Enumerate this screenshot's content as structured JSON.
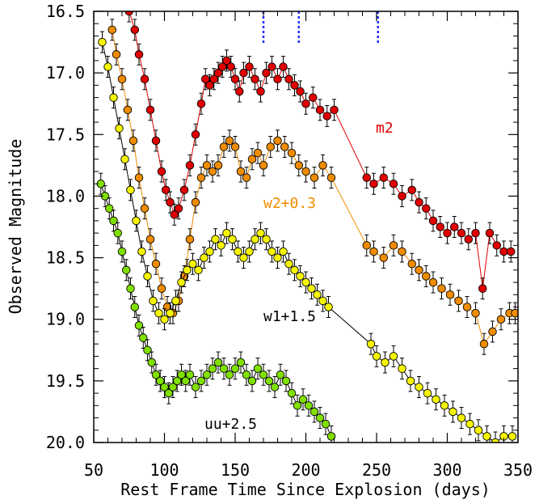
{
  "chart_data": {
    "type": "scatter",
    "xlabel": "Rest Frame Time Since Explosion (days)",
    "ylabel": "Observed Magnitude",
    "xlim": [
      50,
      350
    ],
    "ylim": [
      16.5,
      20.0
    ],
    "y_inverted": true,
    "x_ticks": [
      50,
      100,
      150,
      200,
      250,
      300,
      350
    ],
    "y_ticks": [
      16.5,
      17.0,
      17.5,
      18.0,
      18.5,
      19.0,
      19.5,
      20.0
    ],
    "markers": [
      170,
      195,
      251
    ],
    "series": [
      {
        "name": "m2",
        "color": "#e00000",
        "x": [
          75,
          79,
          82,
          86,
          90,
          94,
          98,
          101,
          104,
          107,
          110,
          114,
          118,
          122,
          126,
          129,
          132,
          135,
          138,
          141,
          144,
          147,
          150,
          153,
          156,
          160,
          164,
          168,
          172,
          176,
          180,
          184,
          188,
          192,
          196,
          200,
          205,
          210,
          215,
          220,
          243,
          248,
          255,
          262,
          268,
          275,
          280,
          285,
          290,
          295,
          300,
          305,
          310,
          315,
          320,
          325,
          330,
          335,
          340,
          345
        ],
        "y": [
          16.5,
          16.65,
          16.85,
          17.05,
          17.3,
          17.55,
          17.8,
          17.95,
          18.05,
          18.15,
          18.1,
          17.95,
          17.75,
          17.5,
          17.25,
          17.05,
          17.1,
          17.05,
          17.0,
          16.95,
          16.9,
          16.95,
          17.05,
          17.15,
          17.0,
          16.95,
          17.05,
          17.15,
          17.0,
          16.95,
          17.05,
          16.95,
          17.05,
          17.1,
          17.15,
          17.25,
          17.2,
          17.3,
          17.35,
          17.3,
          17.85,
          17.9,
          17.85,
          17.9,
          18.0,
          17.95,
          18.05,
          18.1,
          18.2,
          18.25,
          18.3,
          18.25,
          18.3,
          18.35,
          18.3,
          18.75,
          18.3,
          18.4,
          18.45,
          18.45
        ]
      },
      {
        "name": "w2+0.3",
        "color": "#f08c00",
        "x": [
          63,
          66,
          70,
          74,
          78,
          82,
          86,
          90,
          94,
          98,
          102,
          106,
          110,
          114,
          118,
          122,
          126,
          130,
          134,
          138,
          142,
          146,
          150,
          154,
          158,
          162,
          166,
          170,
          175,
          180,
          185,
          190,
          195,
          200,
          206,
          212,
          218,
          243,
          248,
          255,
          262,
          268,
          275,
          280,
          285,
          290,
          296,
          302,
          308,
          314,
          320,
          326,
          332,
          338,
          344,
          348
        ],
        "y": [
          16.65,
          16.85,
          17.05,
          17.3,
          17.55,
          17.85,
          18.1,
          18.35,
          18.55,
          18.75,
          18.9,
          18.95,
          18.85,
          18.65,
          18.35,
          18.05,
          17.85,
          17.75,
          17.8,
          17.75,
          17.6,
          17.55,
          17.6,
          17.8,
          17.85,
          17.7,
          17.65,
          17.75,
          17.6,
          17.55,
          17.6,
          17.65,
          17.75,
          17.8,
          17.85,
          17.75,
          17.85,
          18.4,
          18.45,
          18.5,
          18.4,
          18.45,
          18.55,
          18.6,
          18.65,
          18.7,
          18.75,
          18.8,
          18.85,
          18.9,
          18.95,
          19.2,
          19.1,
          19.0,
          18.95,
          18.95
        ]
      },
      {
        "name": "w1+1.5",
        "color": "#f5f500",
        "x": [
          56,
          60,
          64,
          68,
          72,
          76,
          80,
          84,
          88,
          92,
          96,
          100,
          104,
          108,
          112,
          116,
          120,
          124,
          128,
          132,
          136,
          140,
          144,
          148,
          152,
          156,
          160,
          164,
          168,
          172,
          176,
          180,
          184,
          188,
          192,
          196,
          200,
          204,
          208,
          212,
          216,
          246,
          250,
          256,
          262,
          268,
          274,
          280,
          286,
          292,
          298,
          304,
          310,
          316,
          322,
          328,
          334,
          340,
          346
        ],
        "y": [
          16.75,
          16.95,
          17.2,
          17.45,
          17.7,
          17.95,
          18.2,
          18.45,
          18.65,
          18.85,
          18.95,
          19.0,
          18.95,
          18.85,
          18.7,
          18.6,
          18.55,
          18.6,
          18.5,
          18.45,
          18.35,
          18.4,
          18.3,
          18.35,
          18.45,
          18.5,
          18.45,
          18.35,
          18.3,
          18.35,
          18.45,
          18.5,
          18.45,
          18.55,
          18.6,
          18.65,
          18.7,
          18.75,
          18.8,
          18.85,
          18.9,
          19.2,
          19.3,
          19.35,
          19.3,
          19.4,
          19.5,
          19.55,
          19.6,
          19.65,
          19.7,
          19.75,
          19.8,
          19.85,
          19.9,
          19.95,
          20.0,
          19.95,
          19.95
        ]
      },
      {
        "name": "uu+2.5",
        "color": "#80e000",
        "x": [
          55,
          58,
          61,
          64,
          67,
          70,
          73,
          76,
          79,
          82,
          85,
          88,
          91,
          94,
          97,
          100,
          103,
          106,
          109,
          112,
          115,
          118,
          122,
          126,
          130,
          134,
          138,
          142,
          146,
          150,
          154,
          158,
          162,
          166,
          170,
          174,
          178,
          182,
          186,
          190,
          194,
          198,
          202,
          206,
          210,
          214,
          218
        ],
        "y": [
          17.9,
          18.0,
          18.1,
          18.2,
          18.3,
          18.45,
          18.6,
          18.75,
          18.9,
          19.05,
          19.15,
          19.25,
          19.35,
          19.45,
          19.5,
          19.55,
          19.6,
          19.55,
          19.5,
          19.45,
          19.5,
          19.45,
          19.55,
          19.5,
          19.45,
          19.4,
          19.35,
          19.4,
          19.45,
          19.4,
          19.35,
          19.45,
          19.5,
          19.4,
          19.45,
          19.5,
          19.55,
          19.45,
          19.5,
          19.6,
          19.7,
          19.65,
          19.7,
          19.75,
          19.8,
          19.85,
          19.95
        ]
      }
    ]
  }
}
